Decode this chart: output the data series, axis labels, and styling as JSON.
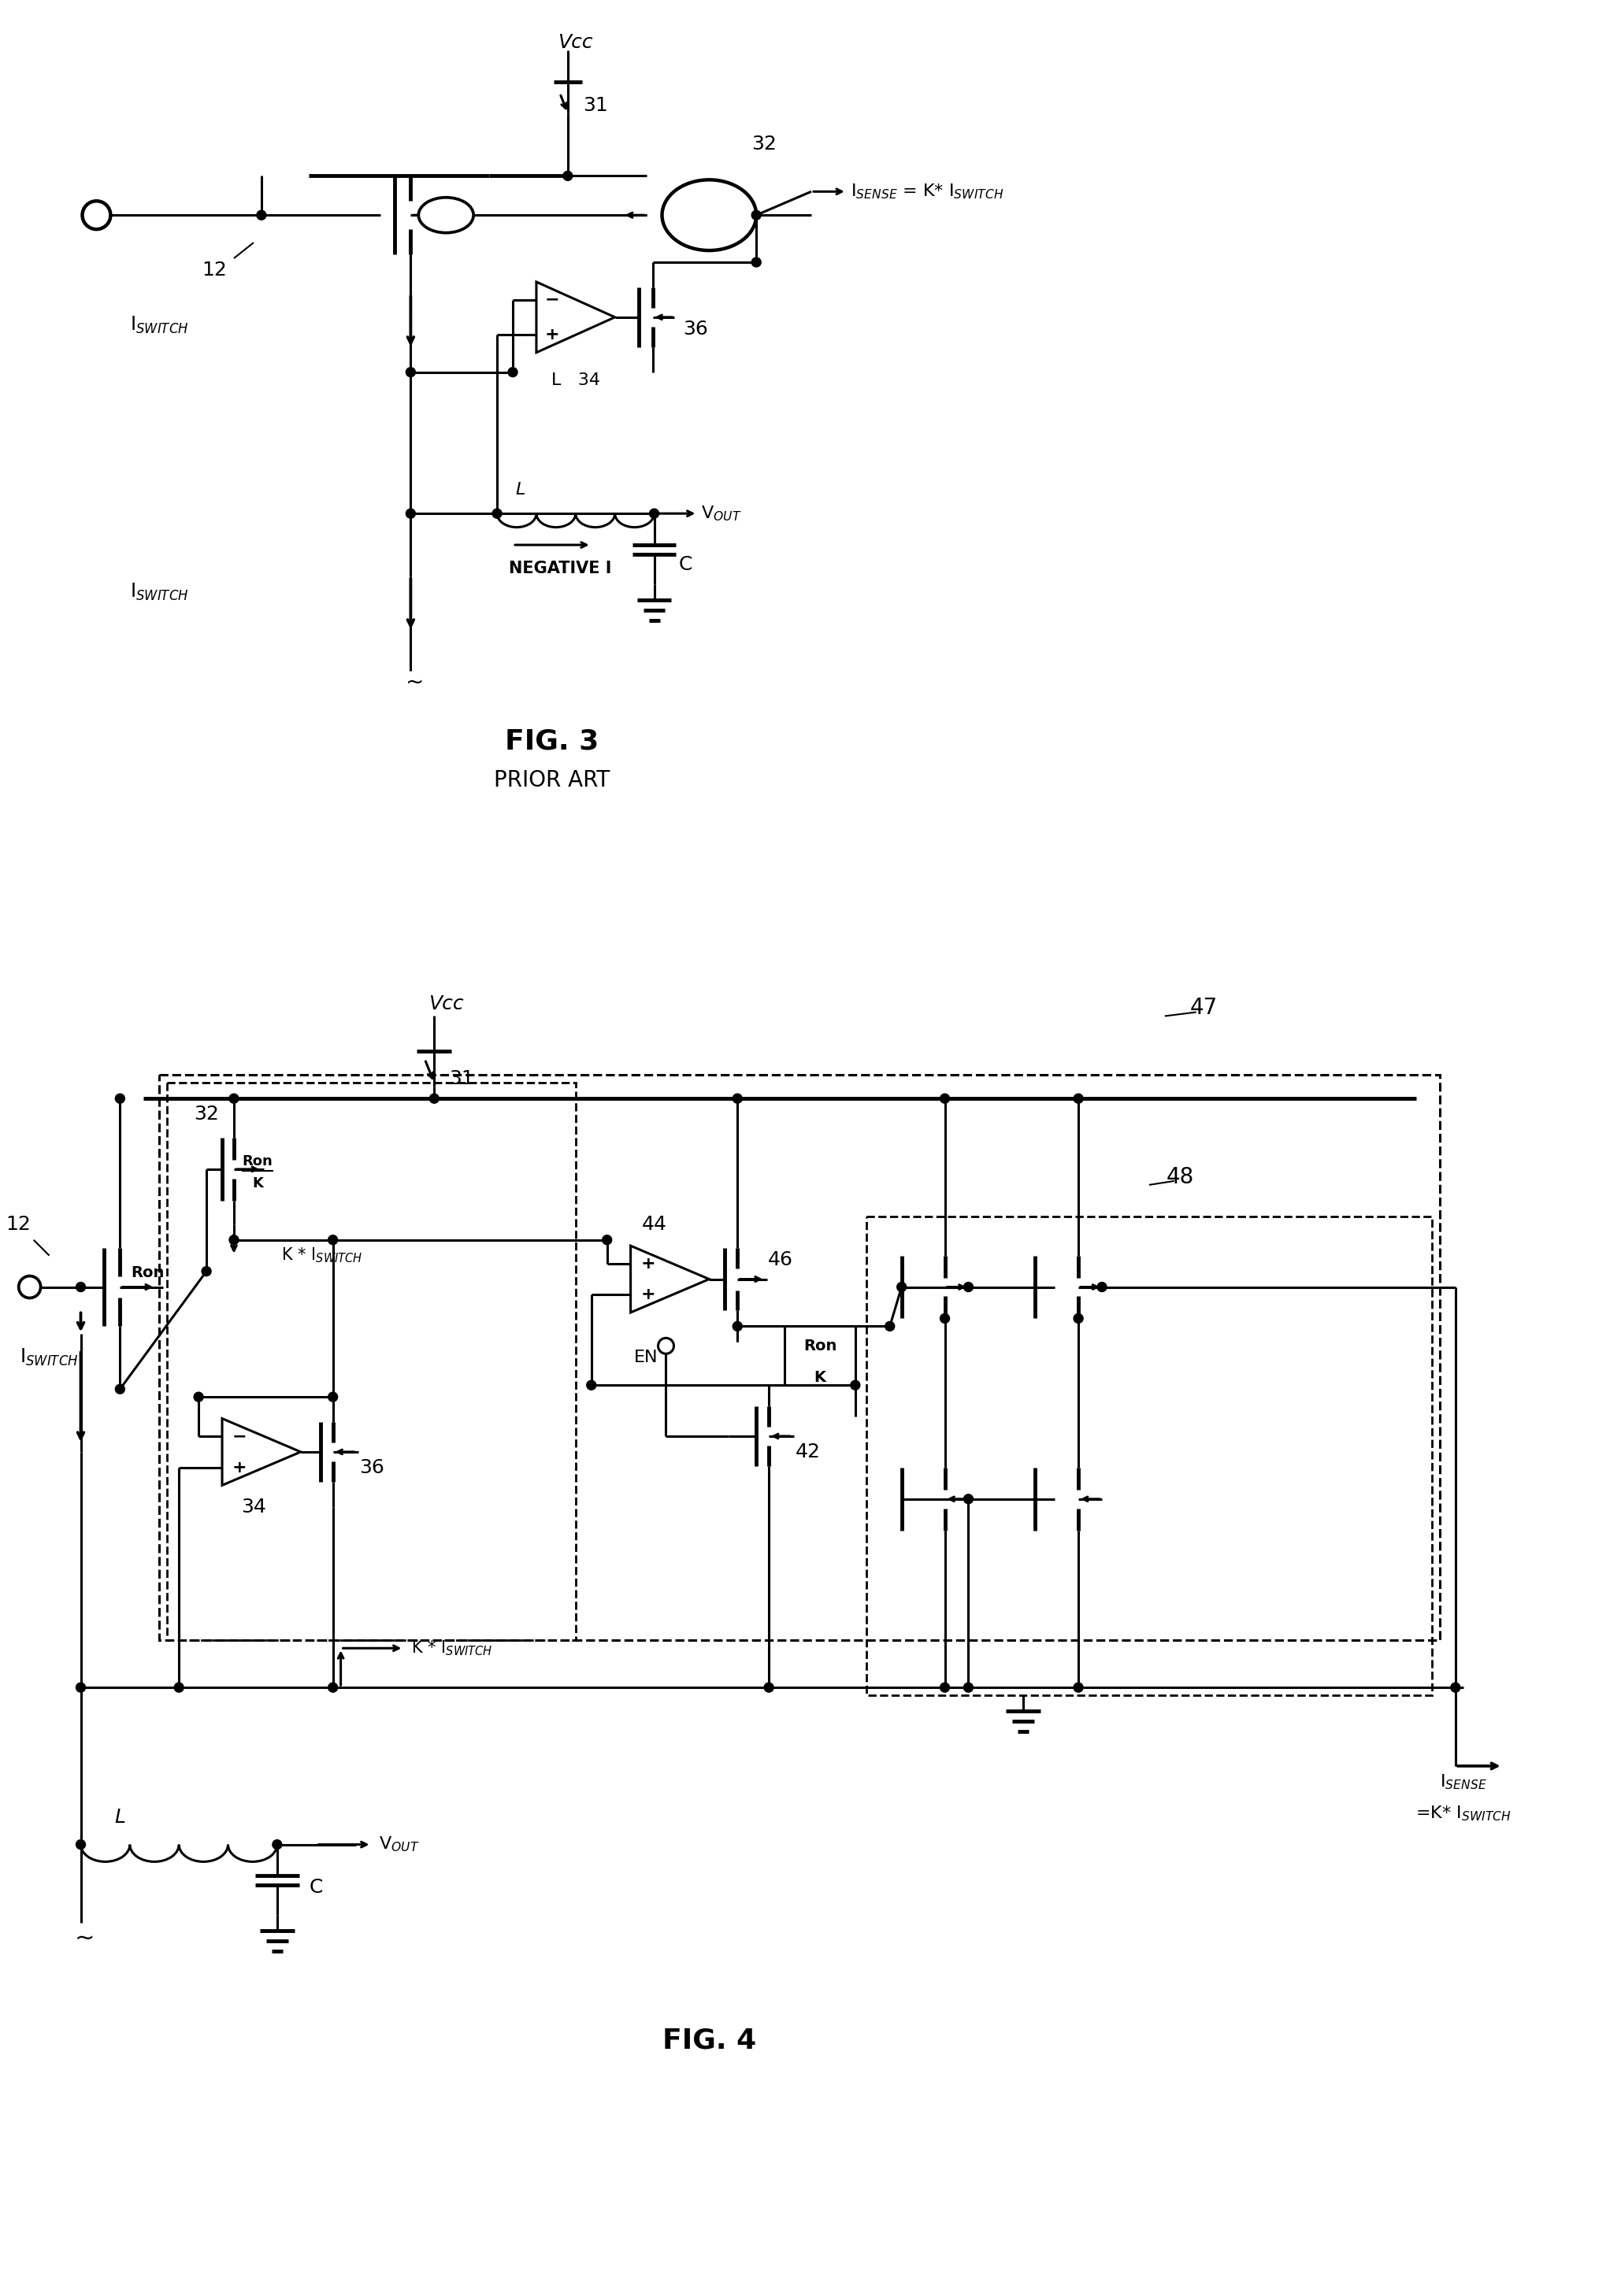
{
  "fig_width": 20.58,
  "fig_height": 29.16,
  "background_color": "#ffffff",
  "line_color": "#000000",
  "lw": 2.2,
  "lw_thick": 3.5,
  "fig3_label": "FIG. 3",
  "fig3_sub": "PRIOR ART",
  "fig4_label": "FIG. 4"
}
